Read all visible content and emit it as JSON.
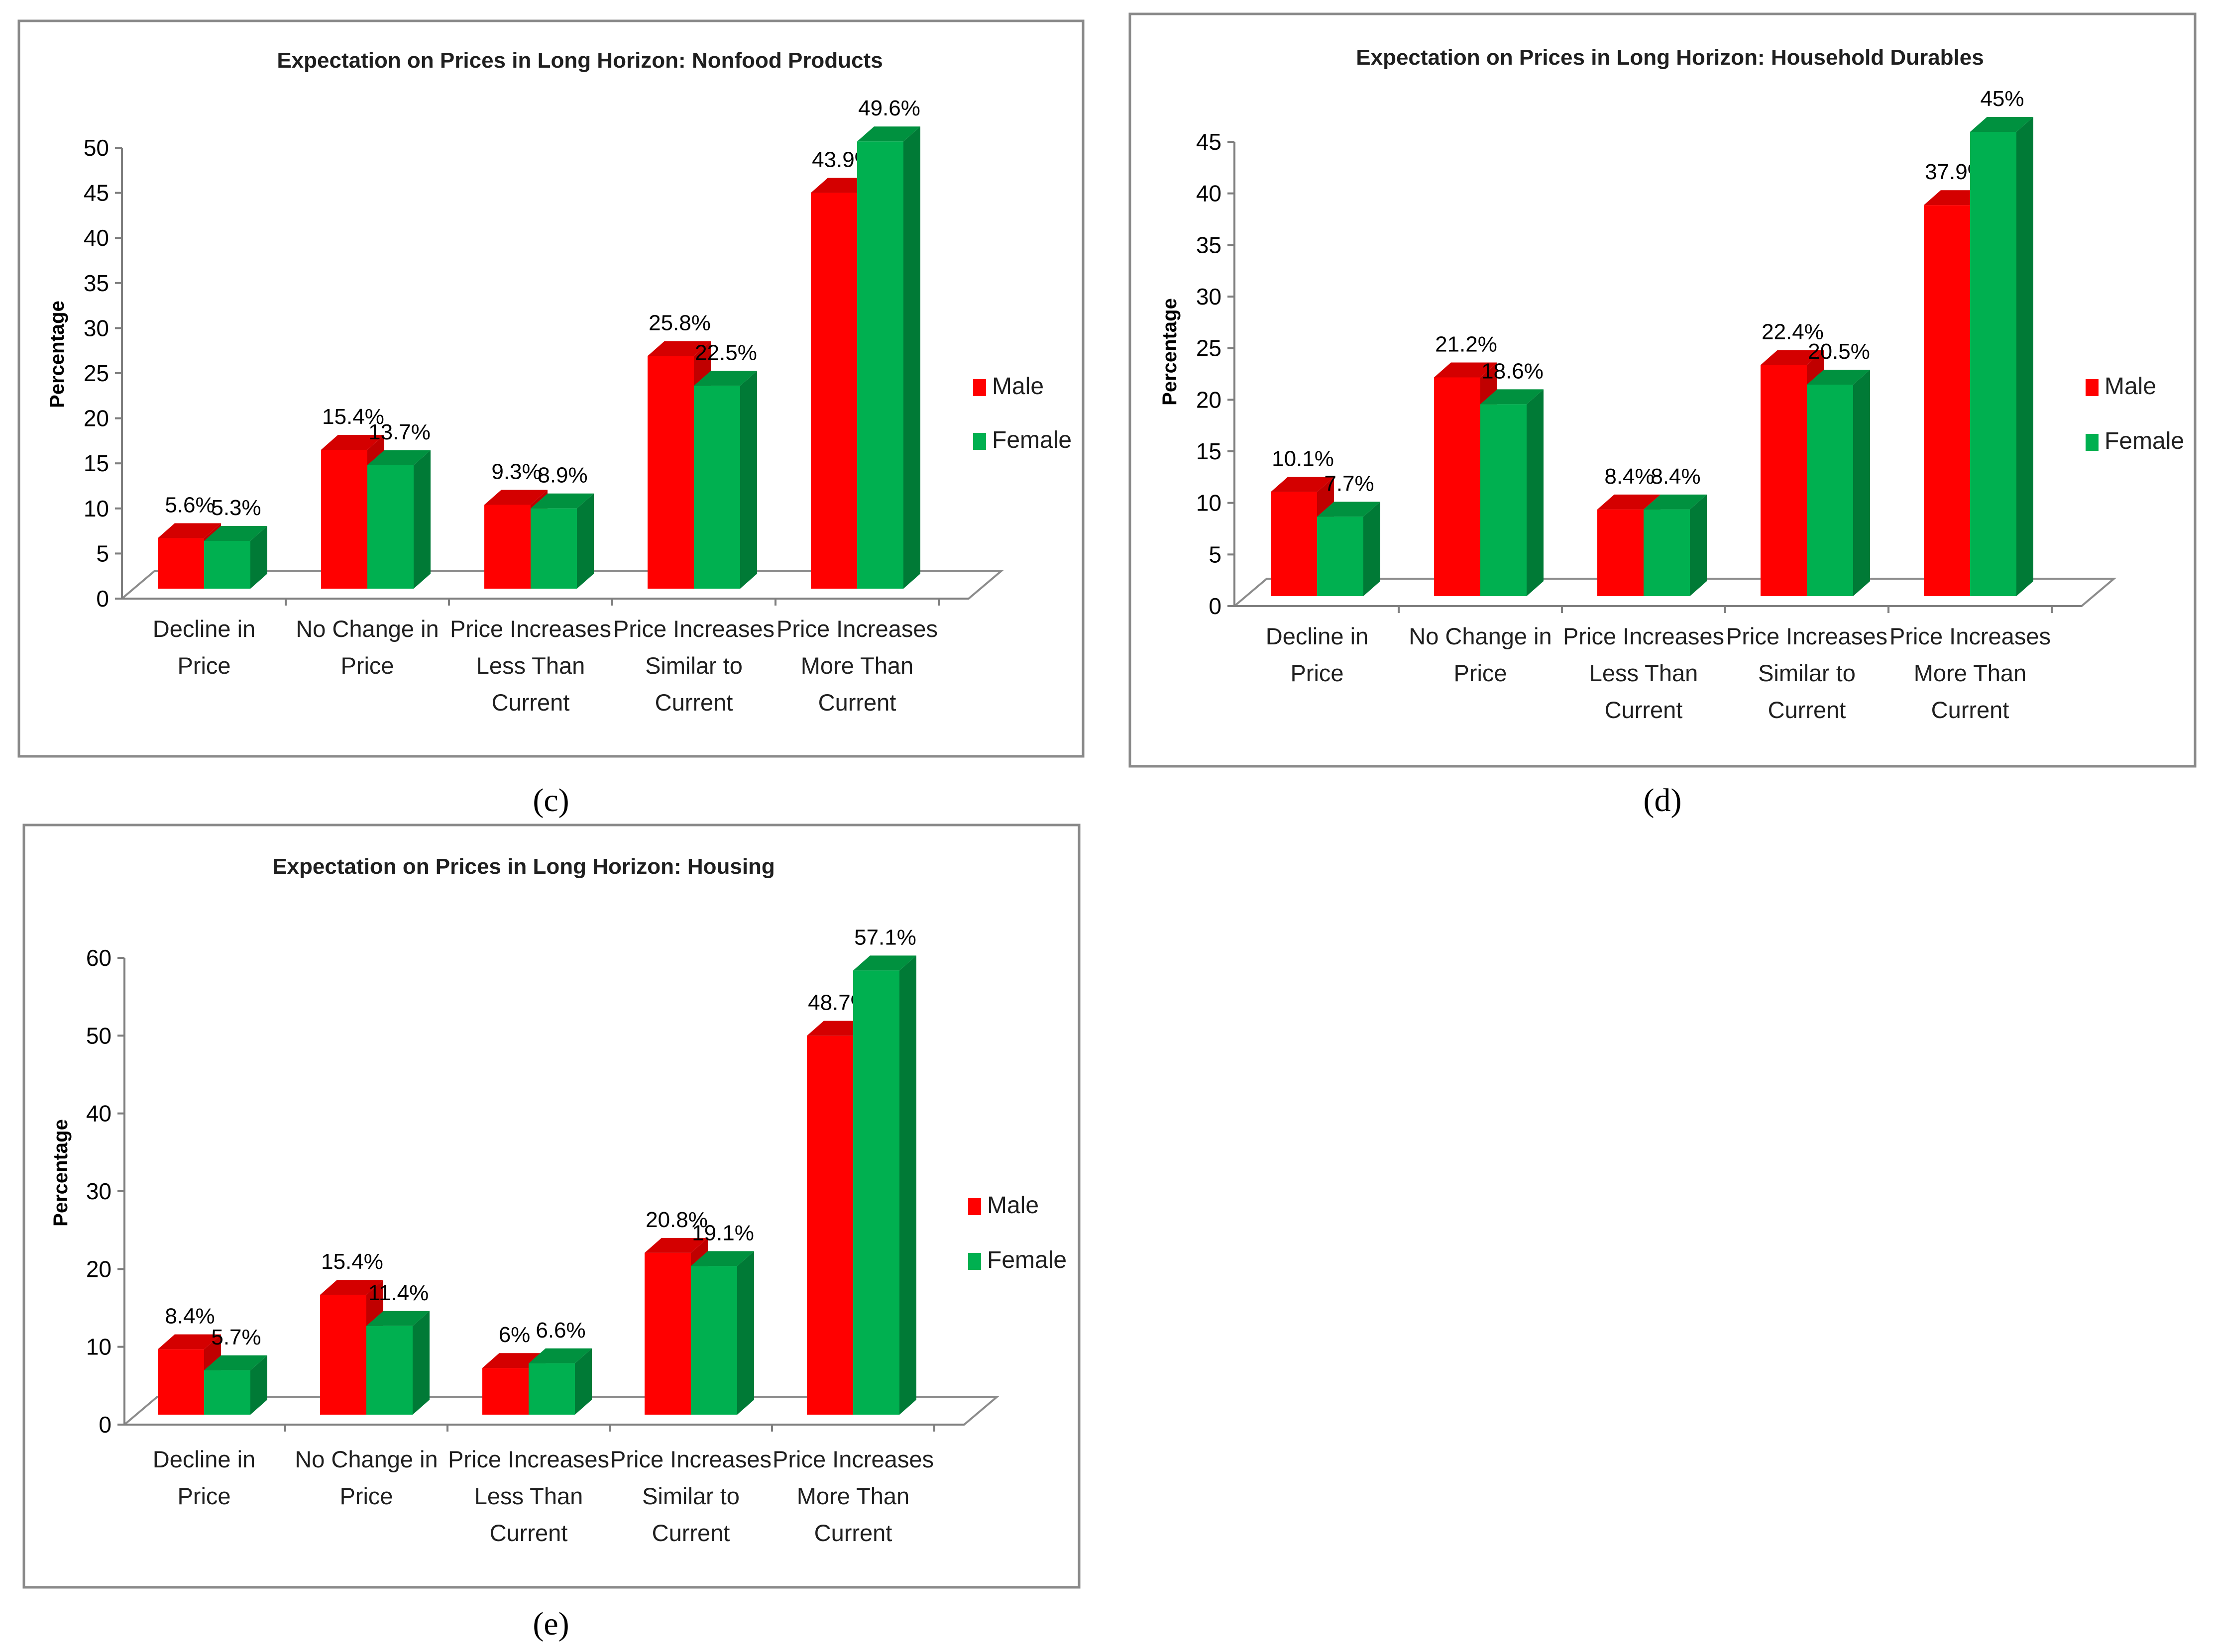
{
  "chart_data": [
    {
      "panel": "c",
      "type": "bar",
      "title": "Expectation on Prices in Long Horizon: Nonfood Products",
      "ylabel": "Percentage",
      "xlabel": "",
      "ylim": [
        0,
        50
      ],
      "yticks": [
        0,
        5,
        10,
        15,
        20,
        25,
        30,
        35,
        40,
        45,
        50
      ],
      "categories": [
        [
          "Decline in",
          "Price"
        ],
        [
          "No Change in",
          "Price"
        ],
        [
          "Price Increases",
          "Less Than",
          "Current"
        ],
        [
          "Price Increases",
          "Similar to",
          "Current"
        ],
        [
          "Price Increases",
          "More Than",
          "Current"
        ]
      ],
      "series": [
        {
          "name": "Male",
          "color": "#ff0000",
          "side": "#c00000",
          "top": "#d40000",
          "values": [
            5.6,
            15.4,
            9.3,
            25.8,
            43.9
          ],
          "labels": [
            "5.6%",
            "15.4%",
            "9.3%",
            "25.8%",
            "43.9%"
          ]
        },
        {
          "name": "Female",
          "color": "#00b050",
          "side": "#007a36",
          "top": "#00913f",
          "values": [
            5.3,
            13.7,
            8.9,
            22.5,
            49.6
          ],
          "labels": [
            "5.3%",
            "13.7%",
            "8.9%",
            "22.5%",
            "49.6%"
          ]
        }
      ],
      "legend": "right"
    },
    {
      "panel": "d",
      "type": "bar",
      "title": "Expectation on Prices in Long Horizon: Household Durables",
      "ylabel": "Percentage",
      "xlabel": "",
      "ylim": [
        0,
        45
      ],
      "yticks": [
        0,
        5,
        10,
        15,
        20,
        25,
        30,
        35,
        40,
        45
      ],
      "categories": [
        [
          "Decline in",
          "Price"
        ],
        [
          "No Change in",
          "Price"
        ],
        [
          "Price Increases",
          "Less Than",
          "Current"
        ],
        [
          "Price Increases",
          "Similar to",
          "Current"
        ],
        [
          "Price Increases",
          "More Than",
          "Current"
        ]
      ],
      "series": [
        {
          "name": "Male",
          "color": "#ff0000",
          "side": "#c00000",
          "top": "#d40000",
          "values": [
            10.1,
            21.2,
            8.4,
            22.4,
            37.9
          ],
          "labels": [
            "10.1%",
            "21.2%",
            "8.4%",
            "22.4%",
            "37.9%"
          ]
        },
        {
          "name": "Female",
          "color": "#00b050",
          "side": "#007a36",
          "top": "#00913f",
          "values": [
            7.7,
            18.6,
            8.4,
            20.5,
            45
          ],
          "labels": [
            "7.7%",
            "18.6%",
            "8.4%",
            "20.5%",
            "45%"
          ]
        }
      ],
      "legend": "right"
    },
    {
      "panel": "e",
      "type": "bar",
      "title": "Expectation on Prices in Long Horizon: Housing",
      "ylabel": "Percentage",
      "xlabel": "",
      "ylim": [
        0,
        60
      ],
      "yticks": [
        0,
        10,
        20,
        30,
        40,
        50,
        60
      ],
      "categories": [
        [
          "Decline in",
          "Price"
        ],
        [
          "No Change in",
          "Price"
        ],
        [
          "Price Increases",
          "Less Than",
          "Current"
        ],
        [
          "Price Increases",
          "Similar to",
          "Current"
        ],
        [
          "Price Increases",
          "More Than",
          "Current"
        ]
      ],
      "series": [
        {
          "name": "Male",
          "color": "#ff0000",
          "side": "#c00000",
          "top": "#d40000",
          "values": [
            8.4,
            15.4,
            6,
            20.8,
            48.7
          ],
          "labels": [
            "8.4%",
            "15.4%",
            "6%",
            "20.8%",
            "48.7%"
          ]
        },
        {
          "name": "Female",
          "color": "#00b050",
          "side": "#007a36",
          "top": "#00913f",
          "values": [
            5.7,
            11.4,
            6.6,
            19.1,
            57.1
          ],
          "labels": [
            "5.7%",
            "11.4%",
            "6.6%",
            "19.1%",
            "57.1%"
          ]
        }
      ],
      "legend": "right"
    }
  ],
  "captions": {
    "c": "(c)",
    "d": "(d)",
    "e": "(e)"
  }
}
